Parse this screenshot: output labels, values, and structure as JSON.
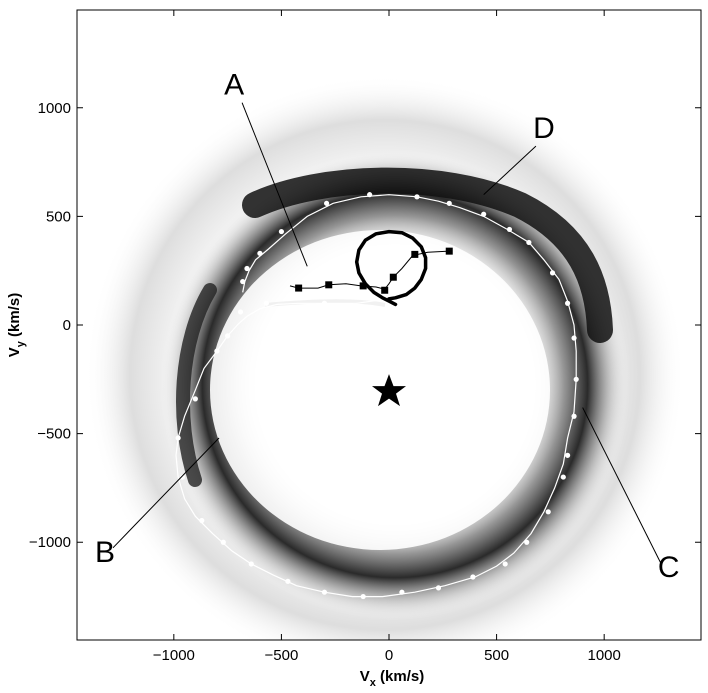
{
  "chart_data": {
    "type": "scatter",
    "title": "",
    "xlabel": {
      "main": "V",
      "sub": "x",
      "unit": " (km/s)"
    },
    "ylabel": {
      "main": "V",
      "sub": "y",
      "unit": " (km/s)"
    },
    "xlim": [
      -1450,
      1450
    ],
    "ylim": [
      -1450,
      1450
    ],
    "xticks": [
      -1000,
      -500,
      0,
      500,
      1000
    ],
    "xtick_labels": [
      "−1000",
      "−500",
      "0",
      "500",
      "1000"
    ],
    "yticks": [
      1000,
      500,
      0,
      -500,
      -1000
    ],
    "ytick_labels": [
      "1000",
      "500",
      "0",
      "−500",
      "−1000"
    ],
    "grid": false,
    "colors": {
      "density_dark": "#111111",
      "density_mid": "#7a7a7a",
      "density_light": "#d8d8d8",
      "trajectory_white": "#ffffff",
      "marker_black": "#000000"
    },
    "star": {
      "x": 0,
      "y": -300,
      "icon": "star-icon"
    },
    "series": [
      {
        "style": "white-line-dots",
        "points": [
          [
            -10,
            120
          ],
          [
            -150,
            100
          ],
          [
            -300,
            100
          ],
          [
            -420,
            100
          ],
          [
            -520,
            95
          ],
          [
            -600,
            75
          ],
          [
            -660,
            40
          ],
          [
            -700,
            5
          ],
          [
            -750,
            -50
          ],
          [
            -800,
            -120
          ],
          [
            -860,
            -200
          ],
          [
            -900,
            -300
          ],
          [
            -950,
            -420
          ],
          [
            -980,
            -520
          ],
          [
            -990,
            -600
          ],
          [
            -980,
            -700
          ],
          [
            -950,
            -800
          ],
          [
            -900,
            -880
          ],
          [
            -820,
            -960
          ],
          [
            -730,
            -1040
          ],
          [
            -640,
            -1100
          ],
          [
            -540,
            -1150
          ],
          [
            -430,
            -1200
          ],
          [
            -300,
            -1230
          ],
          [
            -170,
            -1250
          ],
          [
            -30,
            -1250
          ],
          [
            120,
            -1230
          ],
          [
            260,
            -1200
          ],
          [
            400,
            -1160
          ],
          [
            500,
            -1110
          ],
          [
            580,
            -1050
          ],
          [
            660,
            -960
          ],
          [
            720,
            -860
          ],
          [
            770,
            -750
          ],
          [
            810,
            -640
          ],
          [
            830,
            -520
          ],
          [
            860,
            -400
          ],
          [
            870,
            -250
          ],
          [
            870,
            -120
          ],
          [
            860,
            0
          ],
          [
            830,
            110
          ],
          [
            790,
            210
          ],
          [
            720,
            300
          ],
          [
            650,
            380
          ],
          [
            550,
            440
          ],
          [
            440,
            500
          ],
          [
            330,
            540
          ],
          [
            230,
            570
          ],
          [
            130,
            590
          ],
          [
            0,
            600
          ],
          [
            -130,
            590
          ],
          [
            -260,
            560
          ],
          [
            -380,
            500
          ],
          [
            -480,
            420
          ],
          [
            -560,
            350
          ],
          [
            -620,
            300
          ],
          [
            -650,
            250
          ],
          [
            -670,
            200
          ],
          [
            -680,
            150
          ]
        ],
        "dots": [
          [
            -10,
            120
          ],
          [
            -300,
            100
          ],
          [
            -570,
            100
          ],
          [
            -690,
            60
          ],
          [
            -750,
            -50
          ],
          [
            -800,
            -120
          ],
          [
            -900,
            -340
          ],
          [
            -980,
            -520
          ],
          [
            -960,
            -700
          ],
          [
            -870,
            -900
          ],
          [
            -770,
            -1000
          ],
          [
            -640,
            -1100
          ],
          [
            -470,
            -1180
          ],
          [
            -300,
            -1230
          ],
          [
            -120,
            -1250
          ],
          [
            60,
            -1230
          ],
          [
            230,
            -1210
          ],
          [
            390,
            -1160
          ],
          [
            540,
            -1100
          ],
          [
            640,
            -1000
          ],
          [
            740,
            -860
          ],
          [
            810,
            -700
          ],
          [
            830,
            -600
          ],
          [
            860,
            -420
          ],
          [
            870,
            -250
          ],
          [
            860,
            -60
          ],
          [
            830,
            100
          ],
          [
            760,
            240
          ],
          [
            650,
            380
          ],
          [
            560,
            440
          ],
          [
            440,
            510
          ],
          [
            280,
            560
          ],
          [
            130,
            590
          ],
          [
            -90,
            600
          ],
          [
            -290,
            560
          ],
          [
            -500,
            430
          ],
          [
            -600,
            330
          ],
          [
            -660,
            260
          ],
          [
            -680,
            200
          ]
        ]
      },
      {
        "style": "black-line-squares",
        "points": [
          [
            -460,
            180
          ],
          [
            -420,
            170
          ],
          [
            -330,
            170
          ],
          [
            -280,
            185
          ],
          [
            -200,
            190
          ],
          [
            -130,
            180
          ],
          [
            -60,
            175
          ],
          [
            -20,
            165
          ],
          [
            0,
            190
          ],
          [
            20,
            220
          ],
          [
            60,
            260
          ],
          [
            110,
            320
          ],
          [
            180,
            335
          ],
          [
            280,
            340
          ]
        ],
        "squares": [
          [
            -420,
            170
          ],
          [
            -280,
            185
          ],
          [
            -120,
            180
          ],
          [
            -20,
            160
          ],
          [
            20,
            220
          ],
          [
            120,
            325
          ],
          [
            280,
            340
          ]
        ]
      },
      {
        "style": "thick-black-loop",
        "points": [
          [
            0,
            120
          ],
          [
            30,
            125
          ],
          [
            80,
            140
          ],
          [
            120,
            170
          ],
          [
            150,
            210
          ],
          [
            170,
            260
          ],
          [
            170,
            310
          ],
          [
            150,
            360
          ],
          [
            110,
            400
          ],
          [
            60,
            425
          ],
          [
            0,
            430
          ],
          [
            -60,
            420
          ],
          [
            -110,
            390
          ],
          [
            -140,
            345
          ],
          [
            -150,
            290
          ],
          [
            -140,
            240
          ],
          [
            -110,
            190
          ],
          [
            -70,
            150
          ],
          [
            -30,
            125
          ],
          [
            0,
            110
          ],
          [
            20,
            100
          ],
          [
            30,
            95
          ]
        ]
      }
    ],
    "annotations": [
      {
        "text": "A",
        "label_x": -720,
        "label_y": 1060,
        "target_x": -380,
        "target_y": 270
      },
      {
        "text": "D",
        "label_x": 720,
        "label_y": 860,
        "target_x": 440,
        "target_y": 600
      },
      {
        "text": "B",
        "label_x": -1320,
        "label_y": -1090,
        "target_x": -790,
        "target_y": -520
      },
      {
        "text": "C",
        "label_x": 1300,
        "label_y": -1160,
        "target_x": 900,
        "target_y": -380
      }
    ]
  }
}
